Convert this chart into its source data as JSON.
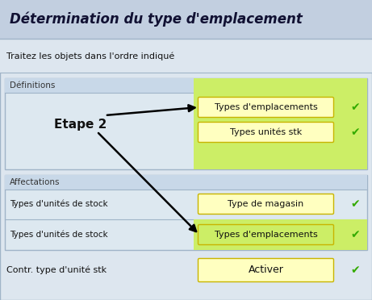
{
  "title": "Détermination du type d'emplacement",
  "subtitle": "Traitez les objets dans l'ordre indiqué",
  "bg_outer": "#dde6ef",
  "title_bg": "#c2cfe0",
  "body_bg": "#dde6ef",
  "section1_label": "Définitions",
  "section2_label": "Affectations",
  "etape_label": "Etape 2",
  "btn1_text": "Types d'emplacements",
  "btn2_text": "Types unités stk",
  "btn3_text": "Type de magasin",
  "btn4_text": "Types d'emplacements",
  "btn5_text": "Activer",
  "row1_left": "Types d'unités de stock",
  "row2_left": "Types d'unités de stock",
  "bottom_left": "Contr. type d'unité stk",
  "yellow_btn": "#ffffc0",
  "yellow_btn_border": "#c8b400",
  "green_highlight": "#ccee66",
  "checkmark_color": "#33aa00",
  "section_bg": "#dde8f0",
  "section_header_bg": "#c8d8e8",
  "section_border": "#a0b4c8",
  "white_row_bg": "#eef3f8"
}
